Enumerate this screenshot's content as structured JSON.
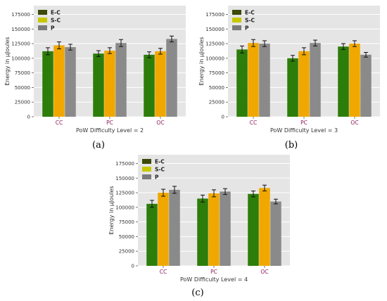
{
  "figure": {
    "captions": [
      "(a)",
      "(b)",
      "(c)"
    ]
  },
  "chart_data": [
    {
      "type": "bar",
      "caption": "(a)",
      "categories": [
        "CC",
        "PC",
        "OC"
      ],
      "series": [
        {
          "name": "E-C",
          "color": "#2d7d0a",
          "values": [
            112000,
            108000,
            106000
          ],
          "errors": [
            6000,
            5000,
            5000
          ]
        },
        {
          "name": "S-C",
          "color": "#f0a800",
          "values": [
            122000,
            113000,
            112000
          ],
          "errors": [
            6000,
            5000,
            5000
          ]
        },
        {
          "name": "P",
          "color": "#8a8a8a",
          "values": [
            119000,
            126000,
            133000
          ],
          "errors": [
            5000,
            6000,
            5000
          ]
        }
      ],
      "legend_colors": [
        "#3d4a08",
        "#c8c800",
        "#7a7a7a"
      ],
      "xlabel": "PoW Difficulty Level = 2",
      "ylabel": "Energy in μJoules",
      "ylim": [
        0,
        190000
      ],
      "yticks": [
        0,
        25000,
        50000,
        75000,
        100000,
        125000,
        150000,
        175000
      ],
      "ytick_labels": [
        "0",
        "25000",
        "50000",
        "75000",
        "100000",
        "125000",
        "150000",
        "175000"
      ],
      "grid": true,
      "legend_position": "top-left"
    },
    {
      "type": "bar",
      "caption": "(b)",
      "categories": [
        "CC",
        "PC",
        "OC"
      ],
      "series": [
        {
          "name": "E-C",
          "color": "#2d7d0a",
          "values": [
            115000,
            100000,
            120000
          ],
          "errors": [
            6000,
            5000,
            5000
          ]
        },
        {
          "name": "S-C",
          "color": "#f0a800",
          "values": [
            126000,
            112000,
            125000
          ],
          "errors": [
            6000,
            6000,
            5000
          ]
        },
        {
          "name": "P",
          "color": "#8a8a8a",
          "values": [
            125000,
            126000,
            106000
          ],
          "errors": [
            5000,
            5000,
            4000
          ]
        }
      ],
      "legend_colors": [
        "#3d4a08",
        "#c8c800",
        "#7a7a7a"
      ],
      "xlabel": "PoW Difficulty Level = 3",
      "ylabel": "Energy in μJoules",
      "ylim": [
        0,
        190000
      ],
      "yticks": [
        0,
        25000,
        50000,
        75000,
        100000,
        125000,
        150000,
        175000
      ],
      "ytick_labels": [
        "0",
        "25000",
        "50000",
        "75000",
        "100000",
        "125000",
        "150000",
        "175000"
      ],
      "grid": true,
      "legend_position": "top-left"
    },
    {
      "type": "bar",
      "caption": "(c)",
      "categories": [
        "CC",
        "PC",
        "OC"
      ],
      "series": [
        {
          "name": "E-C",
          "color": "#2d7d0a",
          "values": [
            106000,
            115000,
            123000
          ],
          "errors": [
            6000,
            6000,
            5000
          ]
        },
        {
          "name": "S-C",
          "color": "#f0a800",
          "values": [
            125000,
            124000,
            133000
          ],
          "errors": [
            6000,
            6000,
            5000
          ]
        },
        {
          "name": "P",
          "color": "#8a8a8a",
          "values": [
            130000,
            127000,
            110000
          ],
          "errors": [
            6000,
            5000,
            4000
          ]
        }
      ],
      "legend_colors": [
        "#3d4a08",
        "#c8c800",
        "#7a7a7a"
      ],
      "xlabel": "PoW Difficulty Level = 4",
      "ylabel": "Energy in μJoules",
      "ylim": [
        0,
        190000
      ],
      "yticks": [
        0,
        25000,
        50000,
        75000,
        100000,
        125000,
        150000,
        175000
      ],
      "ytick_labels": [
        "0",
        "25000",
        "50000",
        "75000",
        "100000",
        "125000",
        "150000",
        "175000"
      ],
      "grid": true,
      "legend_position": "top-left"
    }
  ]
}
